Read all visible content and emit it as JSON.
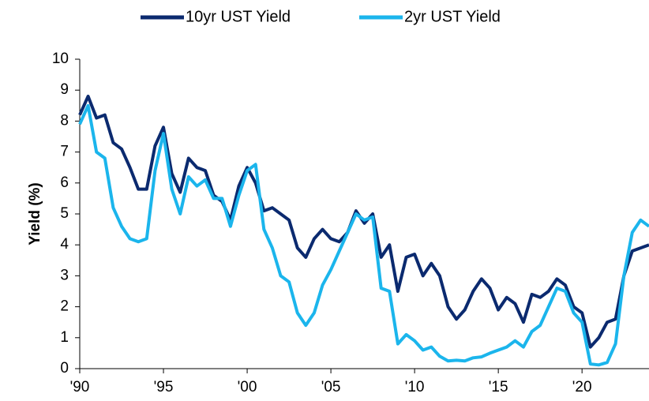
{
  "chart_data": {
    "type": "line",
    "y_label": "Yield (%)",
    "x": [
      1990,
      1990.5,
      1991,
      1991.5,
      1992,
      1992.5,
      1993,
      1993.5,
      1994,
      1994.5,
      1995,
      1995.5,
      1996,
      1996.5,
      1997,
      1997.5,
      1998,
      1998.5,
      1999,
      1999.5,
      2000,
      2000.5,
      2001,
      2001.5,
      2002,
      2002.5,
      2003,
      2003.5,
      2004,
      2004.5,
      2005,
      2005.5,
      2006,
      2006.5,
      2007,
      2007.5,
      2008,
      2008.5,
      2009,
      2009.5,
      2010,
      2010.5,
      2011,
      2011.5,
      2012,
      2012.5,
      2013,
      2013.5,
      2014,
      2014.5,
      2015,
      2015.5,
      2016,
      2016.5,
      2017,
      2017.5,
      2018,
      2018.5,
      2019,
      2019.5,
      2020,
      2020.5,
      2021,
      2021.5,
      2022,
      2022.5,
      2023,
      2023.5,
      2024
    ],
    "series": [
      {
        "name": "10yr UST Yield",
        "color": "#0b2a6f",
        "values": [
          8.2,
          8.8,
          8.1,
          8.2,
          7.3,
          7.1,
          6.5,
          5.8,
          5.8,
          7.2,
          7.8,
          6.3,
          5.7,
          6.8,
          6.5,
          6.4,
          5.6,
          5.4,
          4.8,
          5.9,
          6.5,
          6.0,
          5.1,
          5.2,
          5.0,
          4.8,
          3.9,
          3.6,
          4.2,
          4.5,
          4.2,
          4.1,
          4.4,
          5.1,
          4.7,
          5.0,
          3.6,
          4.0,
          2.5,
          3.6,
          3.7,
          3.0,
          3.4,
          3.0,
          2.0,
          1.6,
          1.9,
          2.5,
          2.9,
          2.6,
          1.9,
          2.3,
          2.1,
          1.5,
          2.4,
          2.3,
          2.5,
          2.9,
          2.7,
          2.0,
          1.8,
          0.7,
          1.0,
          1.5,
          1.6,
          3.0,
          3.8,
          3.9,
          4.0
        ]
      },
      {
        "name": "2yr UST Yield",
        "color": "#1bb5ec",
        "values": [
          7.9,
          8.5,
          7.0,
          6.8,
          5.2,
          4.6,
          4.2,
          4.1,
          4.2,
          6.4,
          7.6,
          5.8,
          5.0,
          6.2,
          5.9,
          6.1,
          5.5,
          5.5,
          4.6,
          5.6,
          6.4,
          6.6,
          4.5,
          3.9,
          3.0,
          2.8,
          1.8,
          1.4,
          1.8,
          2.7,
          3.2,
          3.8,
          4.4,
          5.0,
          4.8,
          4.9,
          2.6,
          2.5,
          0.8,
          1.1,
          0.9,
          0.6,
          0.7,
          0.4,
          0.25,
          0.27,
          0.25,
          0.35,
          0.38,
          0.5,
          0.6,
          0.7,
          0.9,
          0.7,
          1.2,
          1.4,
          2.0,
          2.6,
          2.5,
          1.8,
          1.5,
          0.15,
          0.12,
          0.2,
          0.8,
          3.0,
          4.4,
          4.8,
          4.6
        ]
      }
    ],
    "xlim": [
      1990,
      2024
    ],
    "xticks": [
      {
        "value": 1990,
        "label": "'90"
      },
      {
        "value": 1995,
        "label": "'95"
      },
      {
        "value": 2000,
        "label": "'00"
      },
      {
        "value": 2005,
        "label": "'05"
      },
      {
        "value": 2010,
        "label": "'10"
      },
      {
        "value": 2015,
        "label": "'15"
      },
      {
        "value": 2020,
        "label": "'20"
      }
    ],
    "ylim": [
      0,
      10
    ],
    "yticks": [
      0,
      1,
      2,
      3,
      4,
      5,
      6,
      7,
      8,
      9,
      10
    ],
    "legend": "top"
  }
}
